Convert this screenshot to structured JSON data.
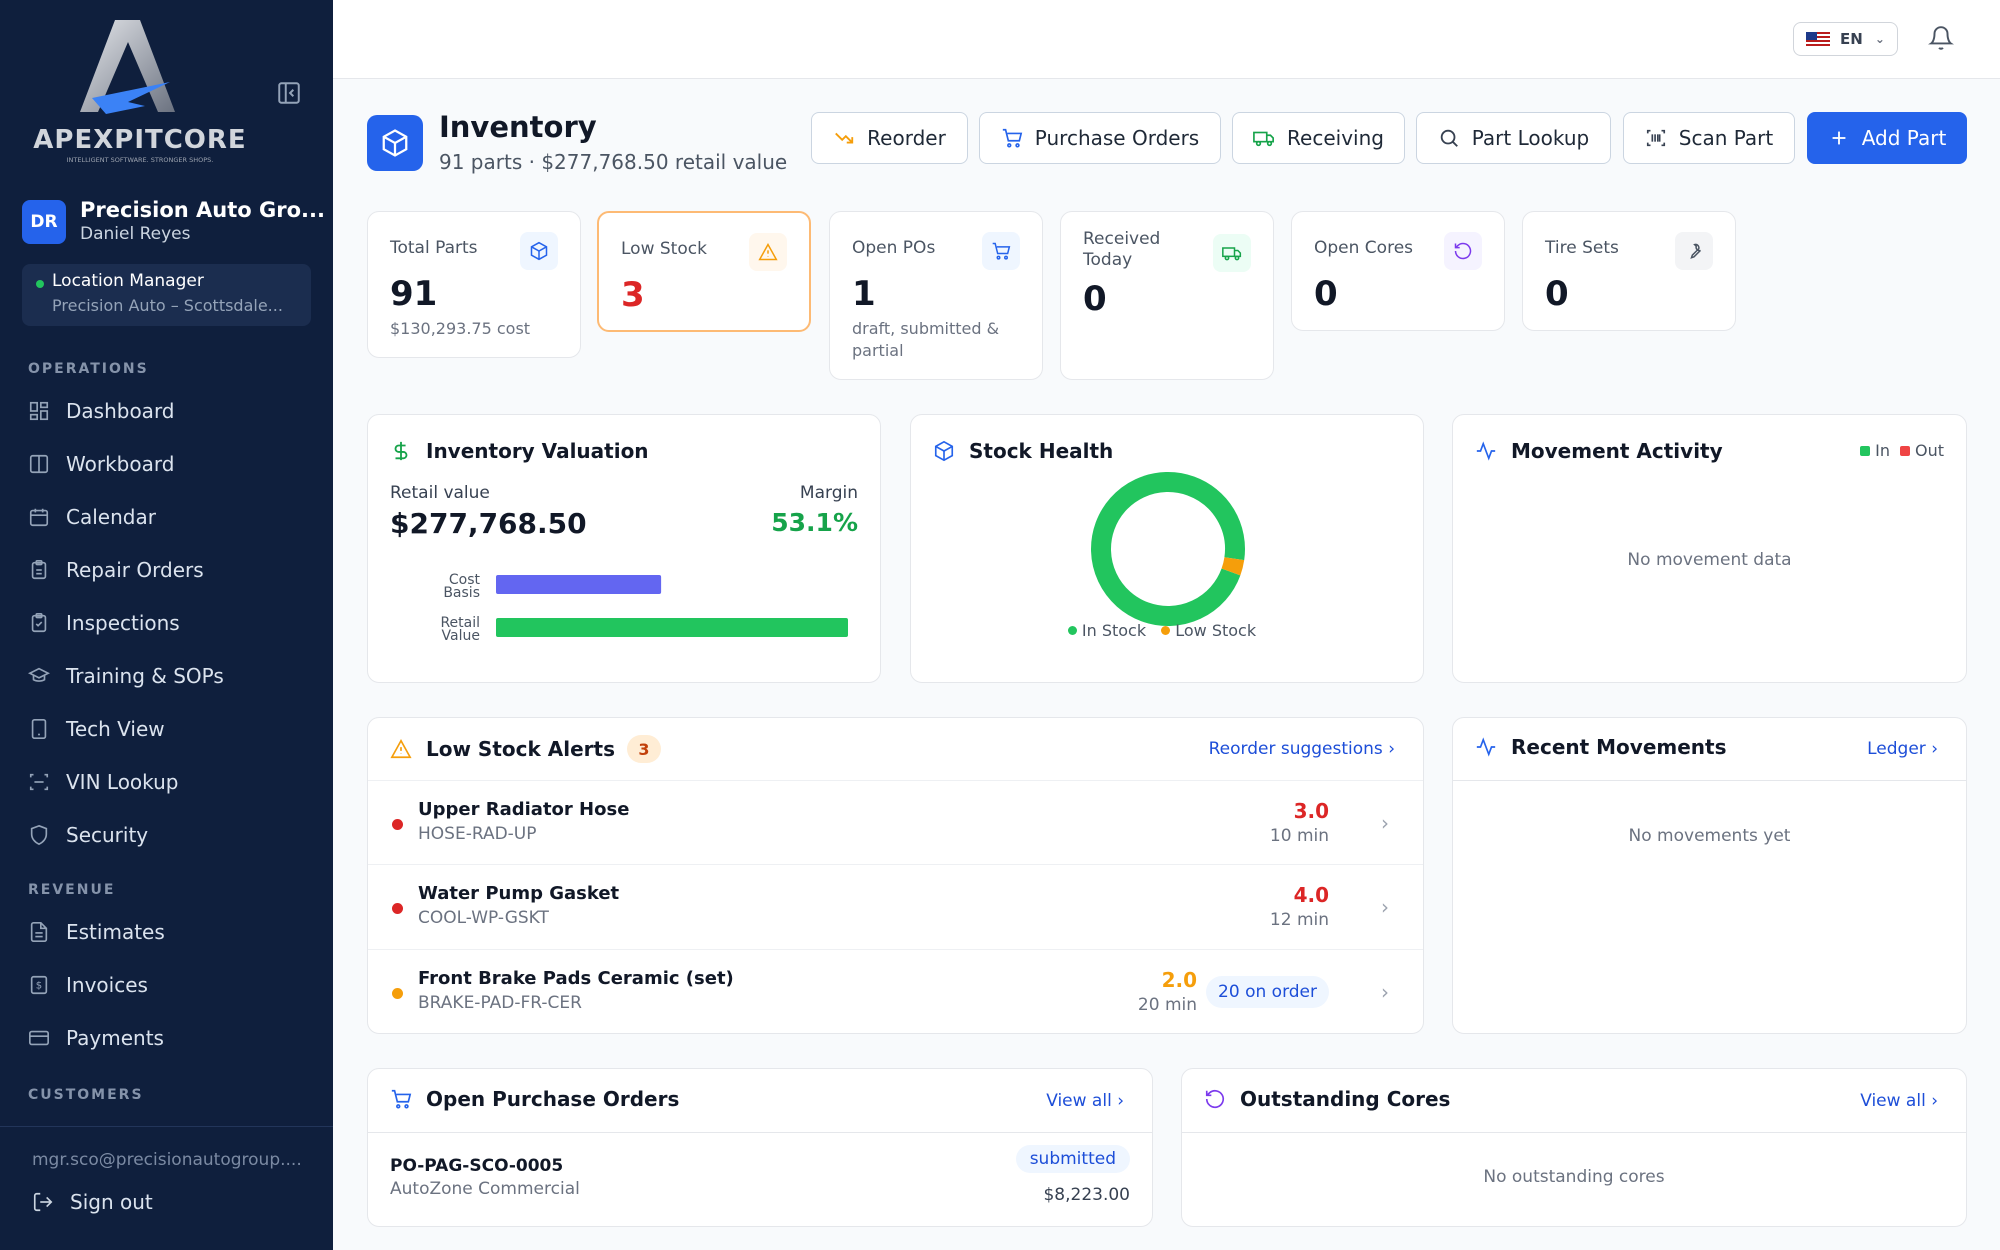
{
  "brand": {
    "name": "APEXPITCORE",
    "tagline": "INTELLIGENT SOFTWARE. STRONGER SHOPS."
  },
  "org": {
    "initials": "DR",
    "name": "Precision Auto Gro...",
    "user": "Daniel Reyes",
    "role": "Location Manager",
    "location": "Precision Auto – Scottsdale..."
  },
  "sidebar": {
    "sections": [
      "OPERATIONS",
      "REVENUE",
      "CUSTOMERS"
    ],
    "operations": [
      {
        "label": "Dashboard",
        "icon": "dashboard-icon"
      },
      {
        "label": "Workboard",
        "icon": "workboard-icon"
      },
      {
        "label": "Calendar",
        "icon": "calendar-icon"
      },
      {
        "label": "Repair Orders",
        "icon": "clipboard-icon"
      },
      {
        "label": "Inspections",
        "icon": "clipboard-check-icon"
      },
      {
        "label": "Training & SOPs",
        "icon": "graduation-cap-icon"
      },
      {
        "label": "Tech View",
        "icon": "tablet-icon"
      },
      {
        "label": "VIN Lookup",
        "icon": "scan-icon"
      },
      {
        "label": "Security",
        "icon": "shield-icon"
      }
    ],
    "revenue": [
      {
        "label": "Estimates",
        "icon": "file-text-icon"
      },
      {
        "label": "Invoices",
        "icon": "receipt-icon"
      },
      {
        "label": "Payments",
        "icon": "credit-card-icon"
      }
    ],
    "email": "mgr.sco@precisionautogroup....",
    "signout": "Sign out"
  },
  "topbar": {
    "language": "EN"
  },
  "header": {
    "title": "Inventory",
    "subtitle": "91 parts · $277,768.50 retail value"
  },
  "toolbar": {
    "reorder": "Reorder",
    "purchase_orders": "Purchase Orders",
    "receiving": "Receiving",
    "part_lookup": "Part Lookup",
    "scan_part": "Scan Part",
    "add_part": "Add Part"
  },
  "kpis": [
    {
      "label": "Total Parts",
      "value": "91",
      "sub": "$130,293.75 cost"
    },
    {
      "label": "Low Stock",
      "value": "3",
      "sub": ""
    },
    {
      "label": "Open POs",
      "value": "1",
      "sub": "draft, submitted & partial"
    },
    {
      "label": "Received Today",
      "value": "0",
      "sub": ""
    },
    {
      "label": "Open Cores",
      "value": "0",
      "sub": ""
    },
    {
      "label": "Tire Sets",
      "value": "0",
      "sub": ""
    }
  ],
  "valuation": {
    "title": "Inventory Valuation",
    "retail_label": "Retail value",
    "retail_value": "$277,768.50",
    "margin_label": "Margin",
    "margin_value": "53.1%",
    "bar_labels": [
      "Cost Basis",
      "Retail Value"
    ]
  },
  "stock_health": {
    "title": "Stock Health",
    "legend": [
      "In Stock",
      "Low Stock"
    ]
  },
  "movement": {
    "title": "Movement Activity",
    "legend_in": "In",
    "legend_out": "Out",
    "empty": "No movement data"
  },
  "chart_data": [
    {
      "type": "bar",
      "categories": [
        "Cost Basis",
        "Retail Value"
      ],
      "values": [
        130293.75,
        277768.5
      ],
      "orientation": "horizontal"
    },
    {
      "type": "pie",
      "categories": [
        "In Stock",
        "Low Stock"
      ],
      "values": [
        88,
        3
      ],
      "colors": [
        "#22c55e",
        "#f59e0b"
      ]
    }
  ],
  "low_stock": {
    "title": "Low Stock Alerts",
    "count": "3",
    "link": "Reorder suggestions ›",
    "items": [
      {
        "name": "Upper Radiator Hose",
        "sku": "HOSE-RAD-UP",
        "qty": "3.0",
        "lead": "10 min",
        "severity": "#dc2626",
        "on_order": ""
      },
      {
        "name": "Water Pump Gasket",
        "sku": "COOL-WP-GSKT",
        "qty": "4.0",
        "lead": "12 min",
        "severity": "#dc2626",
        "on_order": ""
      },
      {
        "name": "Front Brake Pads Ceramic (set)",
        "sku": "BRAKE-PAD-FR-CER",
        "qty": "2.0",
        "lead": "20 min",
        "severity": "#f59e0b",
        "on_order": "20 on order"
      }
    ]
  },
  "recent_movements": {
    "title": "Recent Movements",
    "link": "Ledger ›",
    "empty": "No movements yet"
  },
  "open_pos": {
    "title": "Open Purchase Orders",
    "link": "View all ›",
    "items": [
      {
        "number": "PO-PAG-SCO-0005",
        "vendor": "AutoZone Commercial",
        "status": "submitted",
        "amount": "$8,223.00"
      }
    ]
  },
  "cores": {
    "title": "Outstanding Cores",
    "link": "View all ›",
    "empty": "No outstanding cores"
  }
}
